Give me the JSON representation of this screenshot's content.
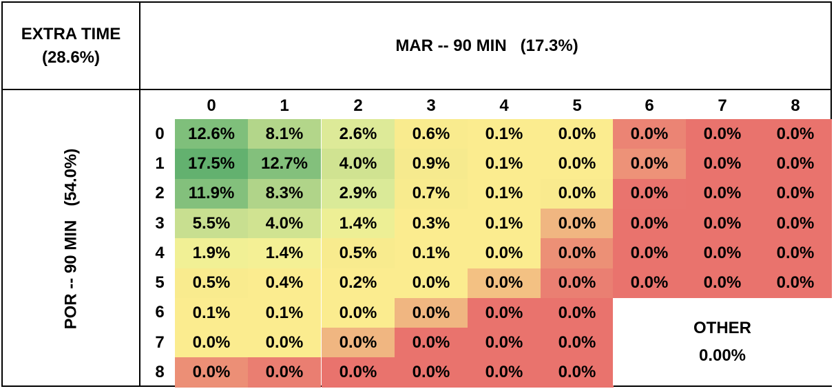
{
  "corner": {
    "line1": "EXTRA TIME",
    "line2": "(28.6%)"
  },
  "columns_title": "MAR -- 90 MIN   (17.3%)",
  "rows_title": "POR -- 90 MIN   (54.0%)",
  "other": {
    "label": "OTHER",
    "value": "0.00%"
  },
  "chart_data": {
    "type": "heatmap",
    "x_axis": {
      "team": "MAR",
      "label": "MAR -- 90 MIN",
      "categories": [
        "0",
        "1",
        "2",
        "3",
        "4",
        "5",
        "6",
        "7",
        "8"
      ]
    },
    "y_axis": {
      "team": "POR",
      "label": "POR -- 90 MIN",
      "categories": [
        "0",
        "1",
        "2",
        "3",
        "4",
        "5",
        "6",
        "7",
        "8"
      ]
    },
    "cells": [
      [
        "12.6%",
        "8.1%",
        "2.6%",
        "0.6%",
        "0.1%",
        "0.0%",
        "0.0%",
        "0.0%",
        "0.0%"
      ],
      [
        "17.5%",
        "12.7%",
        "4.0%",
        "0.9%",
        "0.1%",
        "0.0%",
        "0.0%",
        "0.0%",
        "0.0%"
      ],
      [
        "11.9%",
        "8.3%",
        "2.9%",
        "0.7%",
        "0.1%",
        "0.0%",
        "0.0%",
        "0.0%",
        "0.0%"
      ],
      [
        "5.5%",
        "4.0%",
        "1.4%",
        "0.3%",
        "0.1%",
        "0.0%",
        "0.0%",
        "0.0%",
        "0.0%"
      ],
      [
        "1.9%",
        "1.4%",
        "0.5%",
        "0.1%",
        "0.0%",
        "0.0%",
        "0.0%",
        "0.0%",
        "0.0%"
      ],
      [
        "0.5%",
        "0.4%",
        "0.2%",
        "0.0%",
        "0.0%",
        "0.0%",
        "0.0%",
        "0.0%",
        "0.0%"
      ],
      [
        "0.1%",
        "0.1%",
        "0.0%",
        "0.0%",
        "0.0%",
        "0.0%",
        null,
        null,
        null
      ],
      [
        "0.0%",
        "0.0%",
        "0.0%",
        "0.0%",
        "0.0%",
        "0.0%",
        null,
        null,
        null
      ],
      [
        "0.0%",
        "0.0%",
        "0.0%",
        "0.0%",
        "0.0%",
        "0.0%",
        null,
        null,
        null
      ]
    ],
    "colors": [
      [
        "#7fbf7b",
        "#b3d68a",
        "#ddea98",
        "#f9eb8e",
        "#fbec8f",
        "#fbec8f",
        "#eb8474",
        "#e9736d",
        "#e9736d"
      ],
      [
        "#63b16f",
        "#83c07c",
        "#d0e391",
        "#f6ea8e",
        "#fbec8f",
        "#fbec8f",
        "#ed9278",
        "#e9736d",
        "#e9736d"
      ],
      [
        "#83c07c",
        "#b0d489",
        "#daea98",
        "#f8eb8e",
        "#fbec8f",
        "#f9ea8e",
        "#e9746e",
        "#e9736d",
        "#e9736d"
      ],
      [
        "#c8df90",
        "#d0e391",
        "#edef95",
        "#fbec8f",
        "#fbec8f",
        "#f0b681",
        "#e9736d",
        "#e9736d",
        "#e9736d"
      ],
      [
        "#f1f095",
        "#f4f095",
        "#f8eb8e",
        "#fbec8f",
        "#fbec8f",
        "#ec9076",
        "#e9736d",
        "#e9736d",
        "#e9736d"
      ],
      [
        "#f9eb8e",
        "#fbec8f",
        "#fbec8f",
        "#fbec8f",
        "#f3c183",
        "#ea7f72",
        "#e9736d",
        "#e9736d",
        "#e9736d"
      ],
      [
        "#fbec8f",
        "#fbec8f",
        "#fbec8f",
        "#f0b681",
        "#e9736d",
        "#e9736d",
        null,
        null,
        null
      ],
      [
        "#fbec8f",
        "#fbec8f",
        "#f0b681",
        "#e9736d",
        "#e9736d",
        "#e9736d",
        null,
        null,
        null
      ],
      [
        "#ec8f76",
        "#ea7e71",
        "#e9736d",
        "#e9736d",
        "#e9736d",
        "#e9736d",
        null,
        null,
        null
      ]
    ]
  }
}
